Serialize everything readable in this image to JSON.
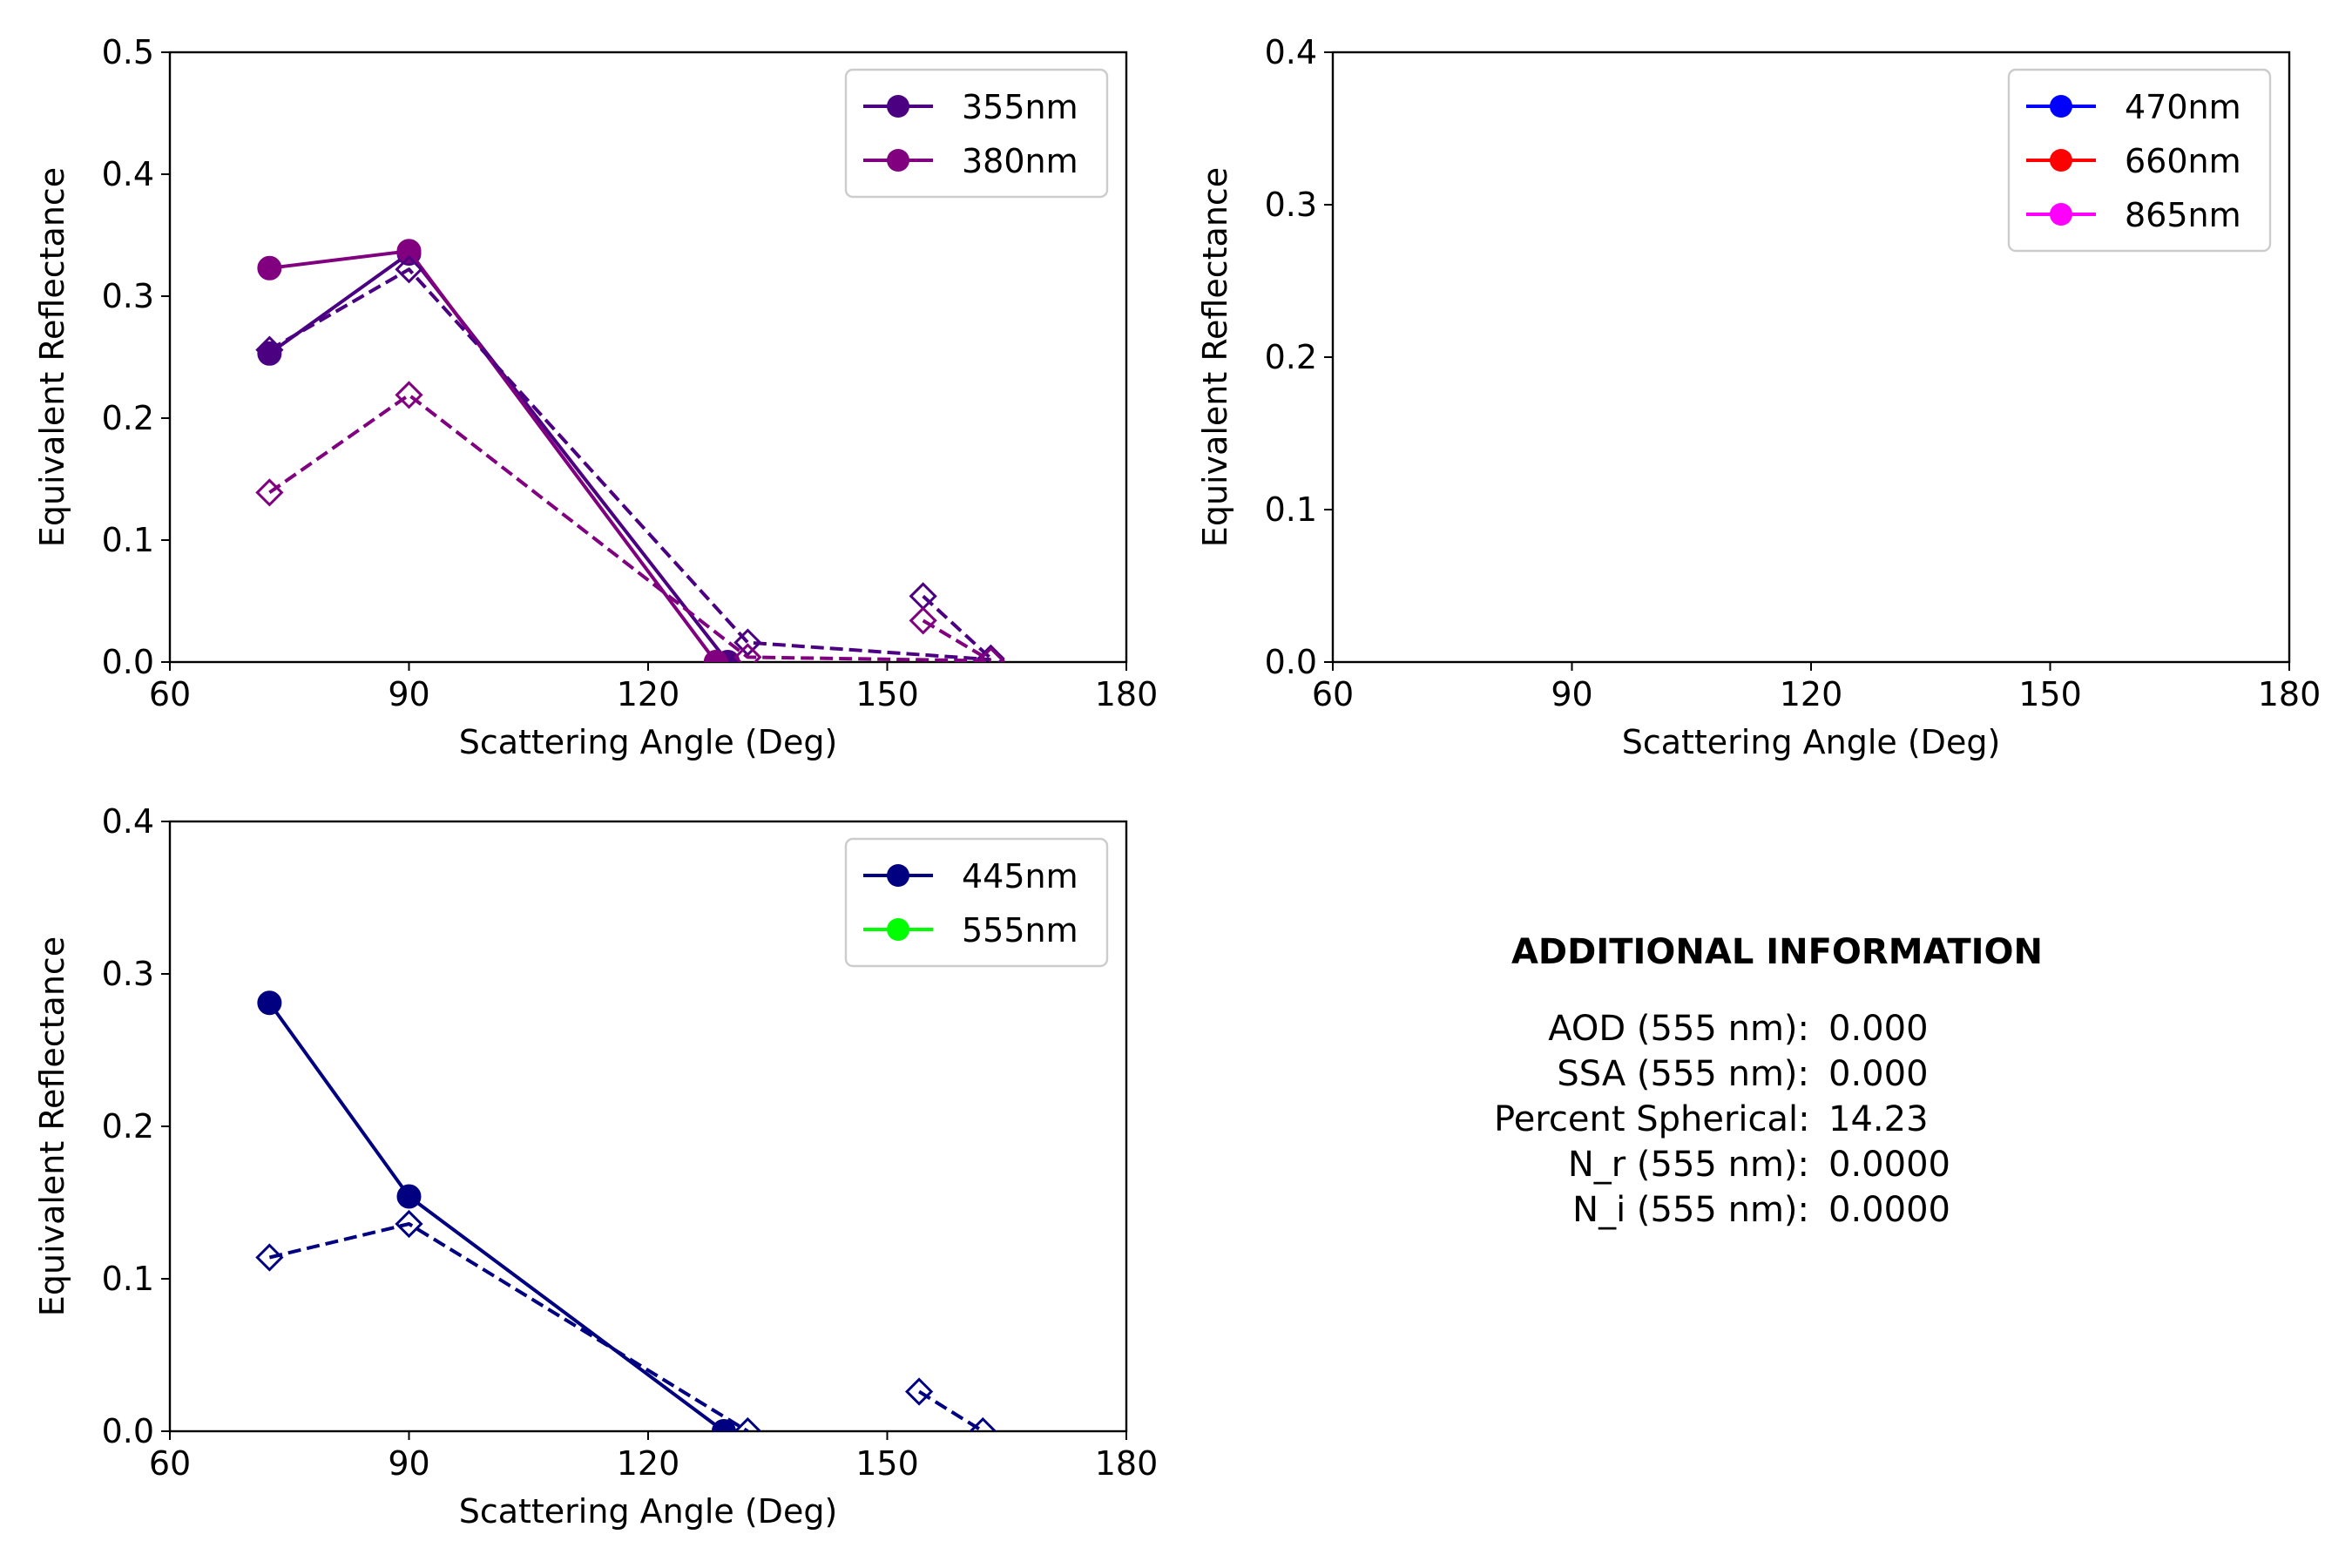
{
  "chart_data": [
    {
      "type": "line",
      "xlabel": "Scattering Angle (Deg)",
      "ylabel": "Equivalent Reflectance",
      "xlim": [
        60,
        180
      ],
      "ylim": [
        0,
        0.5
      ],
      "xticks": [
        "60",
        "90",
        "120",
        "150",
        "180"
      ],
      "yticks": [
        "0.0",
        "0.1",
        "0.2",
        "0.3",
        "0.4",
        "0.5"
      ],
      "legend_position": "top-right",
      "legend": [
        {
          "name": "355nm",
          "color": "#4b0082"
        },
        {
          "name": "380nm",
          "color": "#800080"
        }
      ],
      "series": [
        {
          "name": "355nm",
          "style": "solid",
          "marker": "circle",
          "color": "#4b0082",
          "x": [
            72.5,
            90.0,
            130.0
          ],
          "y": [
            0.253,
            0.335,
            0.0
          ]
        },
        {
          "name": "380nm",
          "style": "solid",
          "marker": "circle",
          "color": "#800080",
          "x": [
            72.5,
            90.0,
            128.5
          ],
          "y": [
            0.323,
            0.337,
            0.0
          ]
        },
        {
          "name": "355nm",
          "style": "dashed",
          "marker": "diamond-open",
          "color": "#4b0082",
          "x": [
            72.5,
            90.0,
            132.5,
            163.0
          ],
          "y": [
            0.256,
            0.322,
            0.016,
            0.002
          ]
        },
        {
          "name": "355nm",
          "style": "dashed",
          "marker": "diamond-open",
          "color": "#4b0082",
          "x": [
            154.5,
            163.0
          ],
          "y": [
            0.054,
            0.003
          ]
        },
        {
          "name": "380nm",
          "style": "dashed",
          "marker": "diamond-open",
          "color": "#800080",
          "x": [
            72.5,
            90.0,
            132.5,
            163.0
          ],
          "y": [
            0.139,
            0.219,
            0.004,
            0.001
          ]
        },
        {
          "name": "380nm",
          "style": "dashed",
          "marker": "diamond-open",
          "color": "#800080",
          "x": [
            154.5,
            163.0
          ],
          "y": [
            0.034,
            0.001
          ]
        }
      ]
    },
    {
      "type": "line",
      "xlabel": "Scattering Angle (Deg)",
      "ylabel": "Equivalent Reflectance",
      "xlim": [
        60,
        180
      ],
      "ylim": [
        0,
        0.4
      ],
      "xticks": [
        "60",
        "90",
        "120",
        "150",
        "180"
      ],
      "yticks": [
        "0.0",
        "0.1",
        "0.2",
        "0.3",
        "0.4"
      ],
      "legend_position": "top-right",
      "legend": [
        {
          "name": "470nm",
          "color": "#0000ff"
        },
        {
          "name": "660nm",
          "color": "#ff0000"
        },
        {
          "name": "865nm",
          "color": "#ff00ff"
        }
      ],
      "series": []
    },
    {
      "type": "line",
      "xlabel": "Scattering Angle (Deg)",
      "ylabel": "Equivalent Reflectance",
      "xlim": [
        60,
        180
      ],
      "ylim": [
        0,
        0.4
      ],
      "xticks": [
        "60",
        "90",
        "120",
        "150",
        "180"
      ],
      "yticks": [
        "0.0",
        "0.1",
        "0.2",
        "0.3",
        "0.4"
      ],
      "legend_position": "top-right",
      "legend": [
        {
          "name": "445nm",
          "color": "#000080"
        },
        {
          "name": "555nm",
          "color": "#00ff00"
        }
      ],
      "series": [
        {
          "name": "445nm",
          "style": "solid",
          "marker": "circle",
          "color": "#000080",
          "x": [
            72.5,
            90.0,
            129.5
          ],
          "y": [
            0.281,
            0.154,
            0.0
          ]
        },
        {
          "name": "445nm",
          "style": "dashed",
          "marker": "diamond-open",
          "color": "#000080",
          "x": [
            72.5,
            90.0,
            132.5
          ],
          "y": [
            0.114,
            0.136,
            0.0
          ]
        },
        {
          "name": "445nm",
          "style": "dashed",
          "marker": "diamond-open",
          "color": "#000080",
          "x": [
            154.0,
            162.0
          ],
          "y": [
            0.026,
            0.0
          ]
        }
      ]
    }
  ],
  "info": {
    "title": "ADDITIONAL INFORMATION",
    "rows": [
      {
        "label": "AOD (555 nm):",
        "value": "0.000"
      },
      {
        "label": "SSA (555 nm):",
        "value": "0.000"
      },
      {
        "label": "Percent Spherical:",
        "value": "14.23"
      },
      {
        "label": "N_r (555 nm):",
        "value": "0.0000"
      },
      {
        "label": "N_i (555 nm):",
        "value": "0.0000"
      }
    ]
  }
}
